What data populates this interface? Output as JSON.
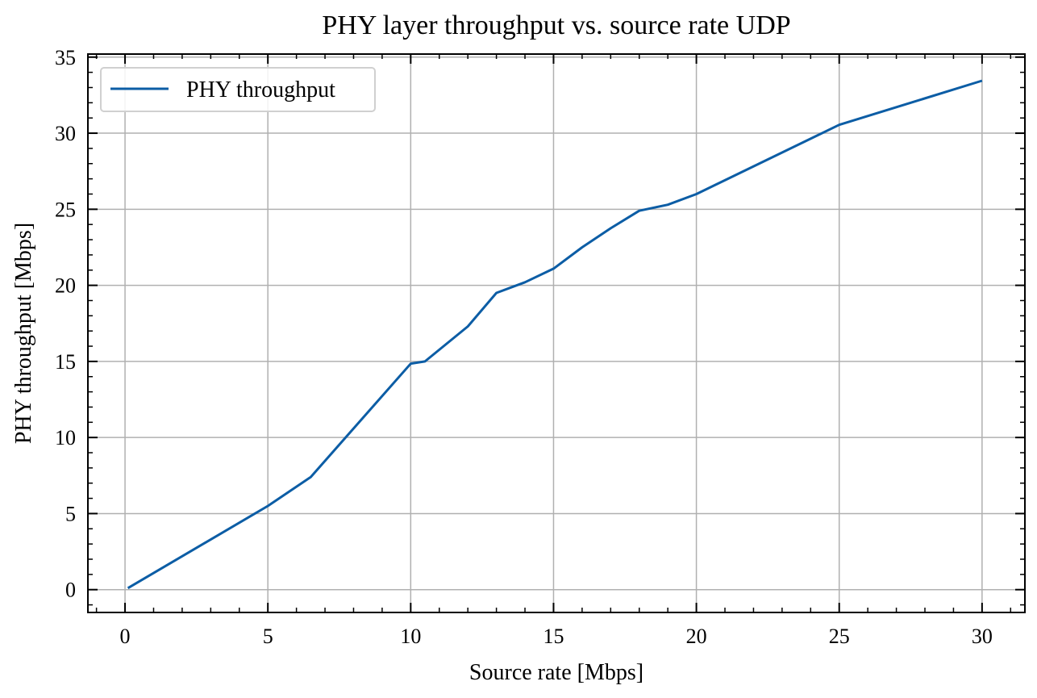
{
  "chart_data": {
    "type": "line",
    "title": "PHY layer throughput vs. source rate UDP",
    "xlabel": "Source rate [Mbps]",
    "ylabel": "PHY throughput [Mbps]",
    "xlim": [
      -1.3,
      31.5
    ],
    "ylim": [
      -1.5,
      35.2
    ],
    "xticks": [
      0,
      5,
      10,
      15,
      20,
      25,
      30
    ],
    "yticks": [
      0,
      5,
      10,
      15,
      20,
      25,
      30,
      35
    ],
    "grid": true,
    "legend_position": "top-left",
    "series": [
      {
        "name": "PHY throughput",
        "color": "#0c5da5",
        "x": [
          0.1,
          5,
          6.5,
          10,
          10.5,
          12,
          13,
          14,
          15,
          16,
          17,
          18,
          19,
          20,
          25,
          30
        ],
        "y": [
          0.1,
          5.5,
          7.4,
          14.85,
          15.0,
          17.3,
          19.5,
          20.2,
          21.1,
          22.5,
          23.75,
          24.9,
          25.3,
          26.0,
          30.55,
          33.45
        ]
      }
    ]
  }
}
